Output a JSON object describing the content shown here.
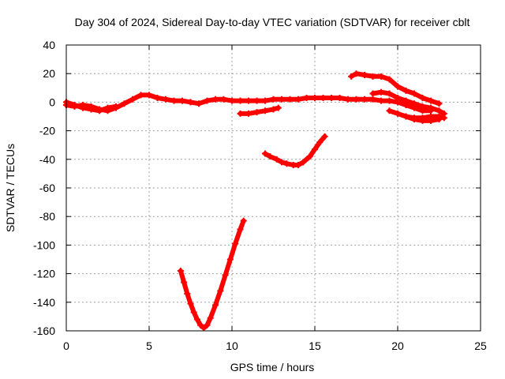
{
  "chart_data": {
    "type": "scatter",
    "title": "Day 304 of 2024, Sidereal Day-to-day VTEC variation (SDTVAR) for receiver cblt",
    "xlabel": "GPS time / hours",
    "ylabel": "SDTVAR / TECUs",
    "xlim": [
      0,
      25
    ],
    "ylim": [
      -160,
      40
    ],
    "xticks": [
      0,
      5,
      10,
      15,
      20,
      25
    ],
    "yticks": [
      40,
      20,
      0,
      -20,
      -40,
      -60,
      -80,
      -100,
      -120,
      -140,
      -160
    ],
    "grid": true,
    "marker": "plus",
    "color": "#ff0000",
    "series": [
      {
        "name": "arc-main-zero",
        "x": [
          0,
          0.5,
          1,
          1.5,
          2,
          2.5,
          3,
          3.5,
          4,
          4.5,
          5,
          5.5,
          6,
          6.5,
          7,
          7.5,
          8,
          8.5,
          9,
          9.5,
          10,
          10.5,
          11,
          11.5,
          12,
          12.5,
          13,
          13.5,
          14,
          14.5,
          15,
          15.5,
          16,
          16.5,
          17,
          17.5,
          18,
          18.5,
          19,
          19.5,
          20,
          20.5,
          21,
          21.5,
          22
        ],
        "y": [
          -2,
          -3,
          -2,
          -3,
          -5,
          -6,
          -4,
          -1,
          2,
          5,
          5,
          3,
          2,
          1,
          1,
          0,
          -1,
          1,
          2,
          2,
          1,
          1,
          1,
          1,
          1,
          2,
          2,
          2,
          2,
          3,
          3,
          3,
          3,
          3,
          2,
          2,
          2,
          2,
          1,
          1,
          0,
          -2,
          -4,
          -6,
          -6
        ]
      },
      {
        "name": "arc-low-start",
        "x": [
          0,
          0.5,
          1,
          1.5,
          2,
          2.5,
          3
        ],
        "y": [
          0,
          -2,
          -4,
          -5,
          -6,
          -4,
          -3
        ]
      },
      {
        "name": "arc-short-negative",
        "x": [
          10.5,
          11,
          11.5,
          12,
          12.5,
          12.8
        ],
        "y": [
          -8,
          -8,
          -7,
          -6,
          -5,
          -4
        ]
      },
      {
        "name": "arc-upper-right",
        "x": [
          17.2,
          17.5,
          18,
          18.5,
          19,
          19.5,
          20,
          20.5,
          21,
          21.5,
          22,
          22.5
        ],
        "y": [
          18,
          20,
          19,
          18,
          18,
          16,
          11,
          8,
          6,
          3,
          1,
          -1
        ]
      },
      {
        "name": "arc-right-middle",
        "x": [
          18.5,
          19,
          19.5,
          20,
          20.5,
          21,
          21.5,
          22,
          22.5,
          22.8
        ],
        "y": [
          6,
          7,
          6,
          3,
          1,
          -1,
          -3,
          -4,
          -6,
          -8
        ]
      },
      {
        "name": "arc-right-low",
        "x": [
          19.5,
          20,
          20.5,
          21,
          21.5,
          22,
          22.5,
          22.8
        ],
        "y": [
          -6,
          -8,
          -10,
          -11,
          -11,
          -10,
          -10,
          -11
        ]
      },
      {
        "name": "arc-right-low-2",
        "x": [
          20.5,
          21,
          21.5,
          22,
          22.5
        ],
        "y": [
          -10,
          -12,
          -13,
          -13,
          -12
        ]
      },
      {
        "name": "arc-v-mid",
        "x": [
          12,
          12.3,
          12.7,
          13,
          13.3,
          13.7,
          14,
          14.3,
          14.7,
          15,
          15.3,
          15.6
        ],
        "y": [
          -36,
          -38,
          -40,
          -42,
          -43,
          -44,
          -44,
          -42,
          -38,
          -33,
          -28,
          -24
        ]
      },
      {
        "name": "arc-v-deep",
        "x": [
          6.9,
          7.1,
          7.3,
          7.5,
          7.7,
          7.9,
          8.1,
          8.3,
          8.5,
          8.7,
          9,
          9.3,
          9.6,
          9.9,
          10.2,
          10.5,
          10.7
        ],
        "y": [
          -118,
          -126,
          -134,
          -141,
          -147,
          -152,
          -156,
          -158,
          -156,
          -151,
          -142,
          -132,
          -121,
          -110,
          -99,
          -89,
          -83
        ]
      }
    ]
  }
}
